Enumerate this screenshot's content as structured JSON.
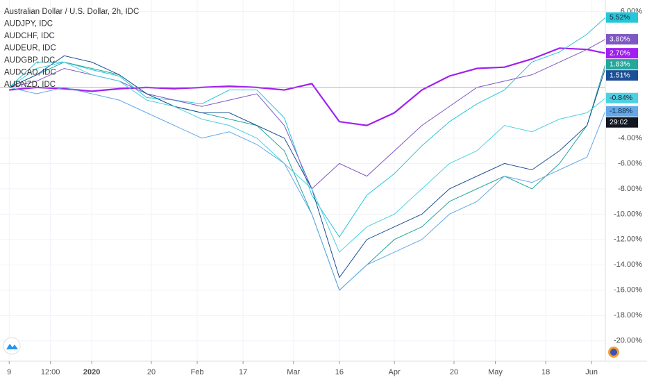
{
  "chart_data": {
    "type": "line",
    "x": [
      0,
      3,
      6,
      9,
      12,
      15,
      18,
      21,
      24,
      27,
      30,
      33,
      36,
      39,
      42,
      45,
      48,
      51,
      54,
      57,
      60,
      63,
      65
    ],
    "xlim": [
      -1,
      65
    ],
    "xticks": [
      {
        "value": 0,
        "label": "9"
      },
      {
        "value": 4.5,
        "label": "12:00"
      },
      {
        "value": 9,
        "label": "2020"
      },
      {
        "value": 15.5,
        "label": "20"
      },
      {
        "value": 20.5,
        "label": "Feb"
      },
      {
        "value": 25.5,
        "label": "17"
      },
      {
        "value": 31,
        "label": "Mar"
      },
      {
        "value": 36,
        "label": "16"
      },
      {
        "value": 42,
        "label": "Apr"
      },
      {
        "value": 48.5,
        "label": "20"
      },
      {
        "value": 53,
        "label": "May"
      },
      {
        "value": 58.5,
        "label": "18"
      },
      {
        "value": 63.5,
        "label": "Jun"
      }
    ],
    "ylim": [
      -21.6,
      6.9
    ],
    "yticks": [
      {
        "value": 6,
        "label": "6.00%"
      },
      {
        "value": -4,
        "label": "-4.00%"
      },
      {
        "value": -6,
        "label": "-6.00%"
      },
      {
        "value": -8,
        "label": "-8.00%"
      },
      {
        "value": -10,
        "label": "-10.00%"
      },
      {
        "value": -12,
        "label": "-12.00%"
      },
      {
        "value": -14,
        "label": "-14.00%"
      },
      {
        "value": -16,
        "label": "-16.00%"
      },
      {
        "value": -18,
        "label": "-18.00%"
      },
      {
        "value": -20,
        "label": "-20.00%"
      }
    ],
    "grid": true,
    "countdown": "29:02",
    "series": [
      {
        "name": "Australian Dollar / U.S. Dollar, 2h, IDC",
        "color": "#a020f0",
        "width": 2.2,
        "last_label": "2.70%",
        "values": [
          -0.2,
          0,
          -0.1,
          -0.3,
          -0.1,
          0,
          -0.1,
          0,
          0.1,
          0,
          -0.2,
          0.3,
          -2.7,
          -3,
          -2,
          -0.2,
          0.9,
          1.5,
          1.6,
          2.25,
          3.1,
          3.0,
          2.7
        ]
      },
      {
        "name": "AUDJPY, IDC",
        "color": "#26c6da",
        "width": 1,
        "last_label": "5.52%",
        "values": [
          0,
          2,
          2,
          1.4,
          0.9,
          -0.8,
          -1,
          -1.3,
          -0.2,
          -0.2,
          -2.4,
          -8.5,
          -11.8,
          -8.5,
          -6.8,
          -4.6,
          -2.7,
          -1.3,
          -0.2,
          2,
          2.8,
          4.2,
          5.52
        ]
      },
      {
        "name": "AUDCHF, IDC",
        "color": "#7e57c2",
        "width": 1,
        "last_label": "3.80%",
        "values": [
          0,
          0.5,
          1.5,
          1,
          0.5,
          -0.5,
          -1,
          -1.5,
          -1,
          -0.5,
          -3,
          -8,
          -6,
          -7,
          -5,
          -3,
          -1.5,
          0,
          0.5,
          1,
          2,
          3,
          3.8
        ]
      },
      {
        "name": "AUDEUR, IDC",
        "color": "#26a69a",
        "width": 1,
        "last_label": "1.83%",
        "values": [
          0,
          1,
          2,
          1.5,
          1,
          -0.5,
          -1.5,
          -2,
          -2.5,
          -3,
          -5,
          -10,
          -16,
          -14,
          -12,
          -11,
          -9,
          -8,
          -7,
          -8,
          -6,
          -3,
          1.83
        ]
      },
      {
        "name": "AUDGBP, IDC",
        "color": "#1c4f96",
        "width": 1,
        "last_label": "1.51%",
        "values": [
          0,
          1,
          2.5,
          2,
          1,
          -0.5,
          -1.5,
          -2,
          -2,
          -3,
          -4,
          -8,
          -15,
          -12,
          -11,
          -10,
          -8,
          -7,
          -6,
          -6.5,
          -5,
          -3,
          1.51
        ]
      },
      {
        "name": "AUDCAD, IDC",
        "color": "#4dd0e1",
        "width": 1,
        "last_label": "-0.84%",
        "values": [
          0,
          1.5,
          2,
          1,
          0.5,
          -1,
          -1.5,
          -2.5,
          -3,
          -4,
          -6,
          -8,
          -13,
          -11,
          -10,
          -8,
          -6,
          -5,
          -3,
          -3.5,
          -2.5,
          -2,
          -0.84
        ]
      },
      {
        "name": "AUDNZD, IDC",
        "color": "#64a8e8",
        "width": 1,
        "last_label": "-1.88%",
        "values": [
          0,
          -0.5,
          0,
          -0.5,
          -1,
          -2,
          -3,
          -4,
          -3.5,
          -4.5,
          -6,
          -10,
          -16,
          -14,
          -13,
          -12,
          -10,
          -9,
          -7,
          -7.5,
          -6.5,
          -5.5,
          -1.88
        ]
      }
    ]
  }
}
